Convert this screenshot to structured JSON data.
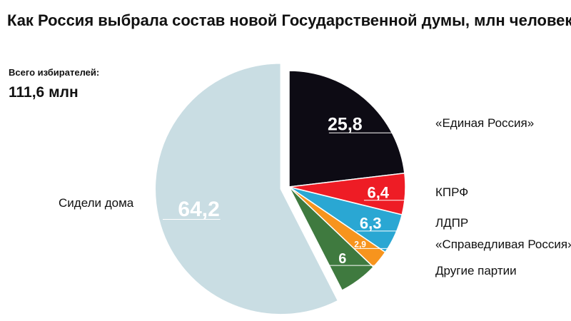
{
  "chart_data": {
    "type": "pie",
    "title": "Как Россия выбрала состав новой Государственной думы, млн человек",
    "total_label": "Всего избирателей:",
    "total_value": "111,6 млн",
    "slices": [
      {
        "label": "«Единая Россия»",
        "value": 25.8,
        "display": "25,8",
        "color": "#0d0b14",
        "text_color": "#ffffff"
      },
      {
        "label": "КПРФ",
        "value": 6.4,
        "display": "6,4",
        "color": "#ee1c25",
        "text_color": "#ffffff"
      },
      {
        "label": "ЛДПР",
        "value": 6.3,
        "display": "6,3",
        "color": "#2aa7d3",
        "text_color": "#ffffff"
      },
      {
        "label": "«Справедливая Россия»",
        "value": 2.9,
        "display": "2,9",
        "color": "#f7941d",
        "text_color": "#ffffff"
      },
      {
        "label": "Другие партии",
        "value": 6,
        "display": "6",
        "color": "#3f7a3f",
        "text_color": "#ffffff"
      },
      {
        "label": "Сидели дома",
        "value": 64.2,
        "display": "64,2",
        "color": "#c9dde3",
        "text_color": "#ffffff"
      }
    ]
  }
}
